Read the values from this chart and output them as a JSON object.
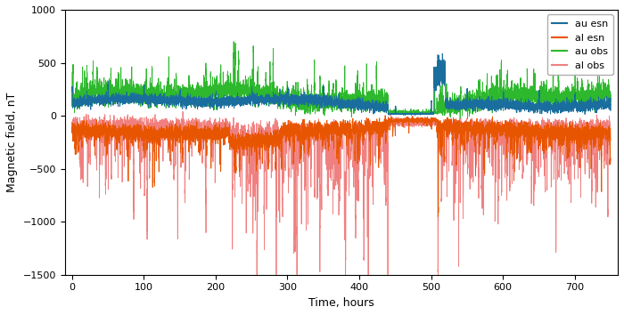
{
  "title": "",
  "xlabel": "Time, hours",
  "ylabel": "Magnetic field, nT",
  "xlim": [
    -10,
    760
  ],
  "ylim": [
    -1500,
    1000
  ],
  "xticks": [
    0,
    100,
    200,
    300,
    400,
    500,
    600,
    700
  ],
  "yticks": [
    -1500,
    -1000,
    -500,
    0,
    500,
    1000
  ],
  "legend": [
    "au esn",
    "al esn",
    "au obs",
    "al obs"
  ],
  "colors": {
    "au_esn": "#1a6e9e",
    "al_esn": "#e85500",
    "au_obs": "#2db82d",
    "al_obs": "#f08080"
  },
  "linewidths": {
    "au_esn": 0.6,
    "al_esn": 0.6,
    "au_obs": 0.6,
    "al_obs": 0.6
  },
  "seed": 42,
  "n_points": 7500,
  "time_max": 750,
  "figsize": [
    7.0,
    3.54
  ],
  "dpi": 100
}
